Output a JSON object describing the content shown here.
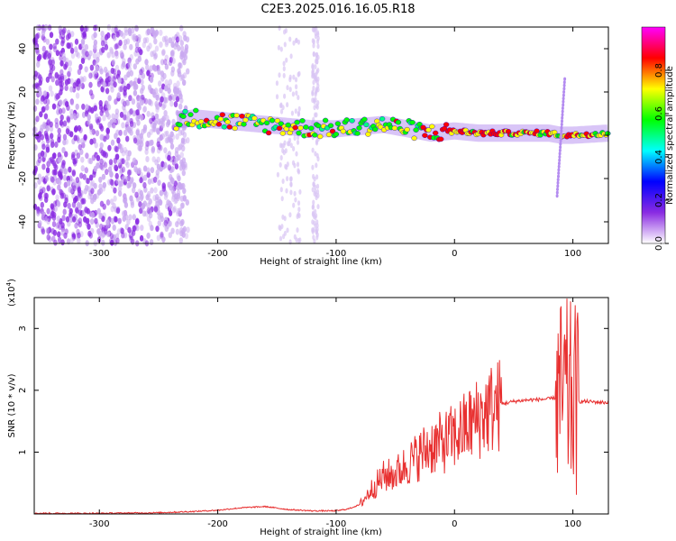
{
  "title": "C2E3.2025.016.16.05.R18",
  "chart_data": [
    {
      "type": "heatmap",
      "title": "C2E3.2025.016.16.05.R18",
      "xlabel": "Height of straight line (km)",
      "ylabel": "Frequency (Hz)",
      "xlim": [
        -355,
        130
      ],
      "ylim": [
        -50,
        50
      ],
      "x_ticks": [
        -300,
        -200,
        -100,
        0,
        100
      ],
      "y_ticks": [
        -40,
        -20,
        0,
        20,
        40
      ],
      "colorbar": {
        "label": "Normalized spectral amplitude",
        "range": [
          0,
          1
        ],
        "ticks": [
          0.0,
          0.2,
          0.4,
          0.6,
          0.8
        ],
        "tick_labels": [
          "0.0",
          "0.2",
          "0.4",
          "0.6",
          "0.8"
        ],
        "colors": [
          "#ffffff",
          "#8a2be2",
          "#0000ff",
          "#00ffff",
          "#00ff00",
          "#ffff00",
          "#ff0000",
          "#ff00ff"
        ]
      },
      "ridge": {
        "x": [
          -235,
          -220,
          -200,
          -180,
          -160,
          -140,
          -120,
          -100,
          -80,
          -60,
          -40,
          -20,
          0,
          20,
          40,
          60,
          80,
          90,
          100,
          130
        ],
        "y": [
          7,
          8,
          7,
          6,
          5,
          4,
          3,
          3,
          4,
          5,
          3,
          1,
          2,
          1,
          1,
          1,
          1,
          0,
          0,
          1
        ]
      },
      "noise_band_x": [
        -355,
        -225
      ],
      "grid": false
    },
    {
      "type": "line",
      "xlabel": "Height of straight line (km)",
      "ylabel": "SNR (10 * v/v)",
      "y_multiplier": "(x10",
      "y_multiplier_exp": "4",
      "y_multiplier_close": ")",
      "xlim": [
        -355,
        130
      ],
      "ylim": [
        0,
        3.5
      ],
      "x_ticks": [
        -300,
        -200,
        -100,
        0,
        100
      ],
      "y_ticks": [
        1,
        2,
        3
      ],
      "series": [
        {
          "color": "#e83030",
          "x": [
            -355,
            -300,
            -250,
            -220,
            -200,
            -180,
            -160,
            -140,
            -120,
            -100,
            -90,
            -80,
            -70,
            -60,
            -50,
            -40,
            -30,
            -20,
            -10,
            0,
            10,
            20,
            30,
            40,
            50,
            60,
            70,
            80,
            85,
            90,
            95,
            100,
            105,
            110,
            130
          ],
          "y": [
            0.01,
            0.01,
            0.02,
            0.04,
            0.06,
            0.1,
            0.12,
            0.07,
            0.05,
            0.05,
            0.08,
            0.15,
            0.4,
            0.6,
            0.65,
            0.8,
            0.95,
            1.1,
            1.15,
            1.25,
            1.4,
            1.55,
            1.7,
            1.78,
            1.82,
            1.84,
            1.85,
            1.86,
            1.88,
            1.9,
            1.9,
            1.85,
            1.82,
            1.82,
            1.8
          ]
        }
      ],
      "grid": false
    }
  ]
}
